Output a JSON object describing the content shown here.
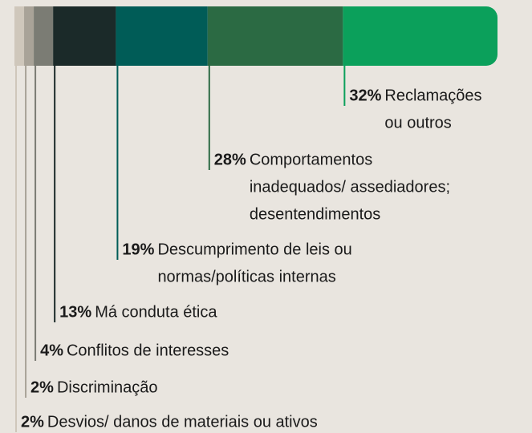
{
  "chart_data": {
    "type": "stacked_bar",
    "values": [
      2,
      2,
      4,
      13,
      19,
      28,
      32
    ],
    "value_labels": [
      "2%",
      "2%",
      "4%",
      "13%",
      "19%",
      "28%",
      "32%"
    ],
    "categories": [
      [
        "Desvios/ danos de materiais ou ativos"
      ],
      [
        "Discriminação"
      ],
      [
        "Conflitos de interesses"
      ],
      [
        "Má conduta ética"
      ],
      [
        "Descumprimento de leis ou",
        "normas/políticas internas"
      ],
      [
        "Comportamentos",
        "inadequados/ assediadores;",
        "desentendimentos"
      ],
      [
        "Reclamações",
        "ou outros"
      ]
    ],
    "colors": [
      "#cfc7bb",
      "#a9a398",
      "#7b7c74",
      "#1b2a29",
      "#005c57",
      "#2b6a43",
      "#0ba05b"
    ]
  }
}
